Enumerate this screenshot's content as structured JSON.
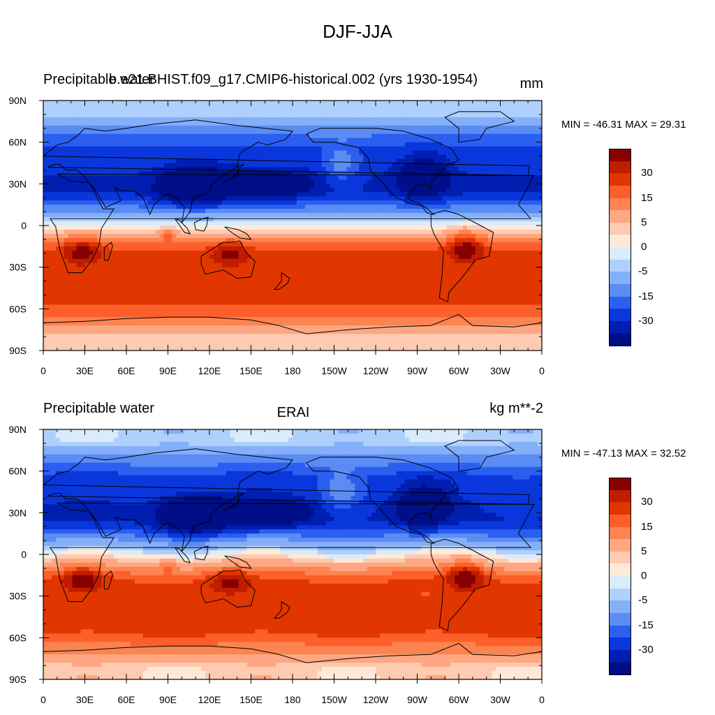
{
  "title": "DJF-JJA",
  "panels": [
    {
      "left_title": "Precipitable water",
      "center_title": "b.e21.BHIST.f09_g17.CMIP6-historical.002 (yrs 1930-1954)",
      "units": "mm",
      "stats": "MIN = -46.31 MAX =  29.31",
      "min": -46.31,
      "max": 29.31
    },
    {
      "left_title": "Precipitable water",
      "center_title": "ERAI",
      "units": "kg m**-2",
      "stats": "MIN = -47.13 MAX =  32.52",
      "min": -47.13,
      "max": 32.52
    }
  ],
  "lat_ticks": [
    "90N",
    "60N",
    "30N",
    "0",
    "30S",
    "60S",
    "90S"
  ],
  "lon_ticks": [
    "0",
    "30E",
    "60E",
    "90E",
    "120E",
    "150E",
    "180",
    "150W",
    "120W",
    "90W",
    "60W",
    "30W",
    "0"
  ],
  "colorbar": {
    "labels": [
      "30",
      "15",
      "5",
      "0",
      "-5",
      "-15",
      "-30"
    ],
    "colors": [
      "#870000",
      "#bf1d00",
      "#e23600",
      "#fd5f2b",
      "#fc8450",
      "#fda882",
      "#fecab0",
      "#fee9d9",
      "#daebfc",
      "#afd0fc",
      "#84aff9",
      "#5a8cf4",
      "#2b5ff0",
      "#0a37db",
      "#001eb0",
      "#000e88"
    ]
  },
  "map": {
    "ocean_color": "#fcd9c4",
    "land_outline": "#000000"
  }
}
